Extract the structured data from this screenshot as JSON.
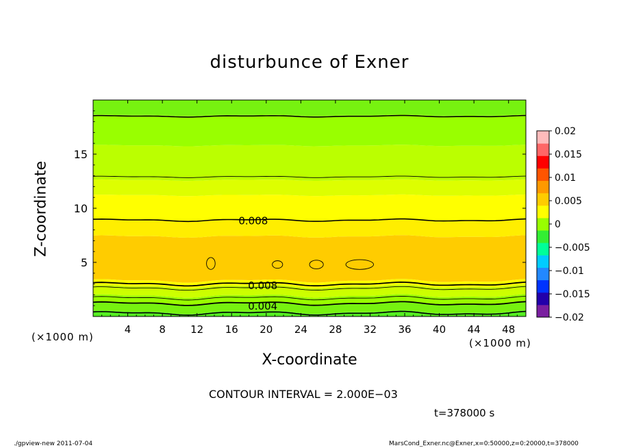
{
  "chart_data": {
    "type": "heatmap",
    "title": "disturbunce of Exner",
    "xlabel": "X-coordinate",
    "ylabel": "Z-coordinate",
    "x_unit_left": "(×1000 m)",
    "x_unit_right": "(×1000 m)",
    "xlim": [
      0,
      50
    ],
    "ylim": [
      0,
      20
    ],
    "x_ticks": [
      4,
      8,
      12,
      16,
      20,
      24,
      28,
      32,
      36,
      40,
      44,
      48
    ],
    "x_tick_labels": [
      "4",
      "8",
      "12",
      "16",
      "20",
      "24",
      "28",
      "32",
      "36",
      "40",
      "44",
      "48"
    ],
    "y_ticks": [
      5,
      10,
      15
    ],
    "y_tick_labels": [
      "5",
      "10",
      "15"
    ],
    "colorbar": {
      "min": -0.02,
      "max": 0.02,
      "ticks": [
        0.02,
        0.015,
        0.01,
        0.005,
        0,
        -0.005,
        -0.01,
        -0.015,
        -0.02
      ],
      "tick_labels": [
        "0.02",
        "0.015",
        "0.01",
        "0.005",
        "0",
        "−0.005",
        "−0.01",
        "−0.015",
        "−0.02"
      ],
      "colors": [
        "#7a1fa0",
        "#2200aa",
        "#0033ff",
        "#2288ff",
        "#00ccff",
        "#00ff99",
        "#33ee33",
        "#99ff00",
        "#ffff00",
        "#ffcc00",
        "#ff9900",
        "#ff5500",
        "#ff0000",
        "#ff6666",
        "#ffbbbb"
      ]
    },
    "bands": [
      {
        "z_min": 0.0,
        "z_max": 0.4,
        "color": "#55ee22"
      },
      {
        "z_min": 0.4,
        "z_max": 1.2,
        "color": "#77f210"
      },
      {
        "z_min": 1.2,
        "z_max": 1.9,
        "color": "#99ff00"
      },
      {
        "z_min": 1.9,
        "z_max": 2.8,
        "color": "#ccff00"
      },
      {
        "z_min": 2.8,
        "z_max": 3.3,
        "color": "#ffff00"
      },
      {
        "z_min": 3.3,
        "z_max": 7.4,
        "color": "#ffcc00"
      },
      {
        "z_min": 7.4,
        "z_max": 8.9,
        "color": "#ffee00"
      },
      {
        "z_min": 8.9,
        "z_max": 11.2,
        "color": "#ffff00"
      },
      {
        "z_min": 11.2,
        "z_max": 12.6,
        "color": "#ddff00"
      },
      {
        "z_min": 12.6,
        "z_max": 15.8,
        "color": "#bbff00"
      },
      {
        "z_min": 15.8,
        "z_max": 18.6,
        "color": "#99ff00"
      },
      {
        "z_min": 18.6,
        "z_max": 20.0,
        "color": "#77f210"
      }
    ],
    "contour_lines": [
      {
        "z": 0.3,
        "width": 1.6
      },
      {
        "z": 1.2,
        "width": 1.8
      },
      {
        "z": 1.7,
        "width": 0.9
      },
      {
        "z": 2.6,
        "width": 0.9
      },
      {
        "z": 3.0,
        "width": 1.8
      },
      {
        "z": 8.9,
        "width": 1.6
      },
      {
        "z": 12.9,
        "width": 0.9
      },
      {
        "z": 18.5,
        "width": 1.6
      }
    ],
    "contour_labels": [
      {
        "text": "0.008",
        "x": 18.5,
        "z": 8.9
      },
      {
        "text": "0.008",
        "x": 19.6,
        "z": 2.9
      },
      {
        "text": "0.004",
        "x": 19.6,
        "z": 1.0
      }
    ],
    "contour_interval_text": "CONTOUR INTERVAL = 2.000E−03",
    "time_text": "t=378000 s"
  },
  "footer": {
    "left": "./gpview-new  2011-07-04",
    "right": "MarsCond_Exner.nc@Exner,x=0:50000,z=0:20000,t=378000"
  }
}
